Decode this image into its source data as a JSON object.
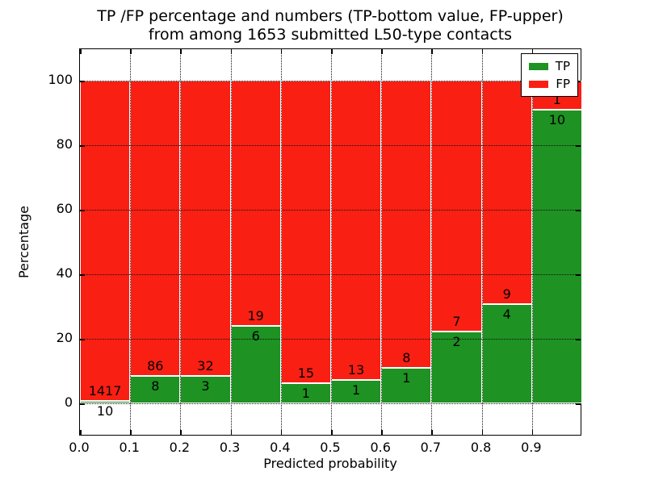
{
  "figure": {
    "title_line1": "TP /FP percentage and numbers (TP-bottom value, FP-upper)",
    "title_line2": "from among 1653 submitted L50-type contacts"
  },
  "chart_data": {
    "type": "bar",
    "stacked": true,
    "normalized_to_percent": true,
    "title": "TP /FP percentage and numbers (TP-bottom value, FP-upper)\nfrom among 1653 submitted L50-type contacts",
    "xlabel": "Predicted probability",
    "ylabel": "Percentage",
    "total_contacts": 1653,
    "bin_edges": [
      0.0,
      0.1,
      0.2,
      0.3,
      0.4,
      0.5,
      0.6,
      0.7,
      0.8,
      0.9,
      1.0
    ],
    "categories": [
      "0.0",
      "0.1",
      "0.2",
      "0.3",
      "0.4",
      "0.5",
      "0.6",
      "0.7",
      "0.8",
      "0.9"
    ],
    "series": [
      {
        "name": "TP",
        "color": "#1e9222",
        "counts": [
          10,
          8,
          3,
          6,
          1,
          1,
          1,
          2,
          4,
          10
        ]
      },
      {
        "name": "FP",
        "color": "#fa1f13",
        "counts": [
          1417,
          86,
          32,
          19,
          15,
          13,
          8,
          7,
          9,
          1
        ]
      }
    ],
    "tp_percent_by_bin": [
      0.7,
      8.5,
      8.6,
      24.0,
      6.3,
      7.1,
      11.1,
      22.2,
      30.8,
      90.9
    ],
    "bar_labels_note": "TP count below segment boundary, FP count above boundary",
    "xticks": [
      0.0,
      0.1,
      0.2,
      0.3,
      0.4,
      0.5,
      0.6,
      0.7,
      0.8,
      0.9
    ],
    "xtick_labels": [
      "0.0",
      "0.1",
      "0.2",
      "0.3",
      "0.4",
      "0.5",
      "0.6",
      "0.7",
      "0.8",
      "0.9"
    ],
    "yticks": [
      0,
      20,
      40,
      60,
      80,
      100
    ],
    "ytick_labels": [
      "0",
      "20",
      "40",
      "60",
      "80",
      "100"
    ],
    "xlim": [
      0.0,
      1.0
    ],
    "ylim": [
      -10.25,
      109.75
    ],
    "grid": "dotted, both axes, drawn above bars",
    "legend": {
      "position": "upper right",
      "entries": [
        {
          "label": "TP",
          "color": "#1e9222"
        },
        {
          "label": "FP",
          "color": "#fa1f13"
        }
      ]
    }
  }
}
